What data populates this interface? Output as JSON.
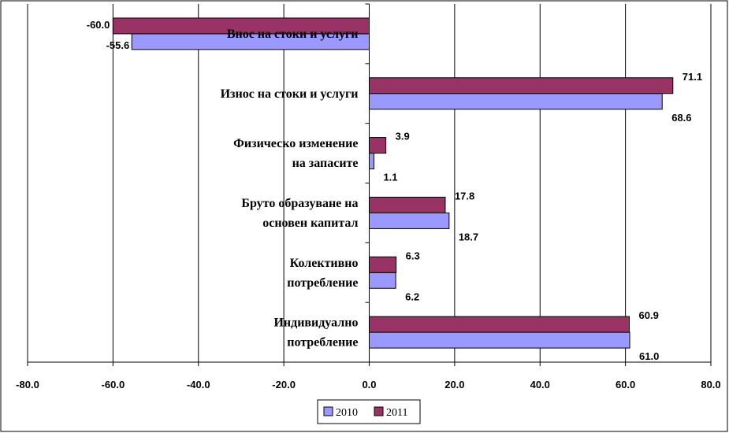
{
  "chart_data": {
    "type": "bar",
    "orientation": "horizontal",
    "categories": [
      [
        "Внос на стоки и услуги"
      ],
      [
        "Износ на стоки и услуги"
      ],
      [
        "Физическо изменение",
        "на запасите"
      ],
      [
        "Бруто образуване на",
        "основен капитал"
      ],
      [
        "Колективно",
        "потребление"
      ],
      [
        "Индивидуално",
        "потребление"
      ]
    ],
    "series": [
      {
        "name": "2010",
        "color": "#9999ff",
        "values": [
          -55.6,
          68.6,
          1.1,
          18.7,
          6.2,
          61.0
        ],
        "labels": [
          "-55.6",
          "68.6",
          "1.1",
          "18.7",
          "6.2",
          "61.0"
        ]
      },
      {
        "name": "2011",
        "color": "#993366",
        "values": [
          -60.0,
          71.1,
          3.9,
          17.8,
          6.3,
          60.9
        ],
        "labels": [
          "-60.0",
          "71.1",
          "3.9",
          "17.8",
          "6.3",
          "60.9"
        ]
      }
    ],
    "xlim": [
      -80,
      80
    ],
    "xticks": [
      -80,
      -60,
      -40,
      -20,
      0,
      20,
      40,
      60,
      80
    ],
    "xtick_labels": [
      "-80.0",
      "-60.0",
      "-40.0",
      "-20.0",
      "0.0",
      "20.0",
      "40.0",
      "60.0",
      "80.0"
    ],
    "grid": "vertical",
    "legend": "bottom-center",
    "title": "",
    "xlabel": "",
    "ylabel": ""
  }
}
